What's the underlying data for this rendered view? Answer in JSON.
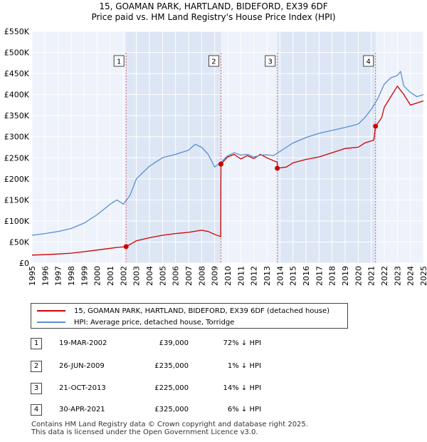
{
  "title": {
    "line1": "15, GOAMAN PARK, HARTLAND, BIDEFORD, EX39 6DF",
    "line2": "Price paid vs. HM Land Registry's House Price Index (HPI)"
  },
  "chart_data": {
    "type": "line",
    "xlim": [
      1995,
      2025
    ],
    "ylim": [
      0,
      550000
    ],
    "y_ticks": [
      {
        "value": 0,
        "label": "£0"
      },
      {
        "value": 50000,
        "label": "£50K"
      },
      {
        "value": 100000,
        "label": "£100K"
      },
      {
        "value": 150000,
        "label": "£150K"
      },
      {
        "value": 200000,
        "label": "£200K"
      },
      {
        "value": 250000,
        "label": "£250K"
      },
      {
        "value": 300000,
        "label": "£300K"
      },
      {
        "value": 350000,
        "label": "£350K"
      },
      {
        "value": 400000,
        "label": "£400K"
      },
      {
        "value": 450000,
        "label": "£450K"
      },
      {
        "value": 500000,
        "label": "£500K"
      },
      {
        "value": 550000,
        "label": "£550K"
      }
    ],
    "x_ticks": [
      "1995",
      "1996",
      "1997",
      "1998",
      "1999",
      "2000",
      "2001",
      "2002",
      "2003",
      "2004",
      "2005",
      "2006",
      "2007",
      "2008",
      "2009",
      "2010",
      "2011",
      "2012",
      "2013",
      "2014",
      "2015",
      "2016",
      "2017",
      "2018",
      "2019",
      "2020",
      "2021",
      "2022",
      "2023",
      "2024",
      "2025"
    ],
    "grid": true,
    "shaded_periods": [
      [
        2002.21,
        2009.48
      ],
      [
        2013.8,
        2021.33
      ]
    ],
    "series": [
      {
        "name": "15, GOAMAN PARK, HARTLAND, BIDEFORD, EX39 6DF (detached house)",
        "color": "#cc0000",
        "x": [
          1995,
          1996,
          1997,
          1998,
          1999,
          2000,
          2001,
          2001.5,
          2002.21,
          2003,
          2004,
          2005,
          2006,
          2007,
          2008,
          2008.5,
          2009,
          2009.46,
          2009.48,
          2010,
          2010.5,
          2011,
          2011.5,
          2012,
          2012.5,
          2013,
          2013.5,
          2013.79,
          2013.8,
          2014.5,
          2015,
          2016,
          2017,
          2018,
          2019,
          2020,
          2020.5,
          2021.2,
          2021.33,
          2021.8,
          2022,
          2022.5,
          2023,
          2023.5,
          2024,
          2024.5,
          2025
        ],
        "y": [
          19000,
          20000,
          21500,
          23500,
          27000,
          31000,
          35000,
          37000,
          39000,
          53000,
          60000,
          66000,
          70000,
          73000,
          78000,
          75000,
          68000,
          63000,
          235000,
          252000,
          258000,
          247000,
          255000,
          248000,
          258000,
          250000,
          243000,
          240000,
          225000,
          228000,
          238000,
          246000,
          252000,
          262000,
          272000,
          275000,
          285000,
          292000,
          325000,
          345000,
          370000,
          395000,
          420000,
          400000,
          375000,
          380000,
          385000
        ]
      },
      {
        "name": "HPI: Average price, detached house, Torridge",
        "color": "#5a8fd0",
        "x": [
          1995,
          1996,
          1997,
          1998,
          1999,
          2000,
          2001,
          2001.5,
          2002,
          2002.5,
          2003,
          2004,
          2005,
          2006,
          2007,
          2007.5,
          2008,
          2008.5,
          2009,
          2009.5,
          2010,
          2010.5,
          2011,
          2011.5,
          2012,
          2012.5,
          2013,
          2013.5,
          2014,
          2014.5,
          2015,
          2016,
          2017,
          2018,
          2019,
          2020,
          2020.5,
          2021,
          2021.5,
          2022,
          2022.5,
          2023,
          2023.25,
          2023.5,
          2024,
          2024.5,
          2025
        ],
        "y": [
          66000,
          70000,
          75000,
          82000,
          95000,
          115000,
          140000,
          150000,
          140000,
          160000,
          200000,
          230000,
          250000,
          258000,
          268000,
          282000,
          275000,
          258000,
          228000,
          240000,
          255000,
          262000,
          256000,
          258000,
          252000,
          256000,
          257000,
          255000,
          265000,
          275000,
          285000,
          298000,
          308000,
          315000,
          322000,
          330000,
          345000,
          365000,
          390000,
          425000,
          440000,
          445000,
          455000,
          420000,
          405000,
          395000,
          400000
        ]
      }
    ],
    "sales": [
      {
        "label": "1",
        "x": 2002.21,
        "y": 39000
      },
      {
        "label": "2",
        "x": 2009.48,
        "y": 235000
      },
      {
        "label": "3",
        "x": 2013.8,
        "y": 225000
      },
      {
        "label": "4",
        "x": 2021.33,
        "y": 325000
      }
    ]
  },
  "legend": [
    {
      "label": "15, GOAMAN PARK, HARTLAND, BIDEFORD, EX39 6DF (detached house)",
      "color": "#cc0000"
    },
    {
      "label": "HPI: Average price, detached house, Torridge",
      "color": "#5a8fd0"
    }
  ],
  "transactions": [
    {
      "num": "1",
      "date": "19-MAR-2002",
      "price": "£39,000",
      "hpi": "72% ↓ HPI"
    },
    {
      "num": "2",
      "date": "26-JUN-2009",
      "price": "£235,000",
      "hpi": "1% ↓ HPI"
    },
    {
      "num": "3",
      "date": "21-OCT-2013",
      "price": "£225,000",
      "hpi": "14% ↓ HPI"
    },
    {
      "num": "4",
      "date": "30-APR-2021",
      "price": "£325,000",
      "hpi": "6% ↓ HPI"
    }
  ],
  "footer": {
    "line1": "Contains HM Land Registry data © Crown copyright and database right 2025.",
    "line2": "This data is licensed under the Open Government Licence v3.0."
  }
}
